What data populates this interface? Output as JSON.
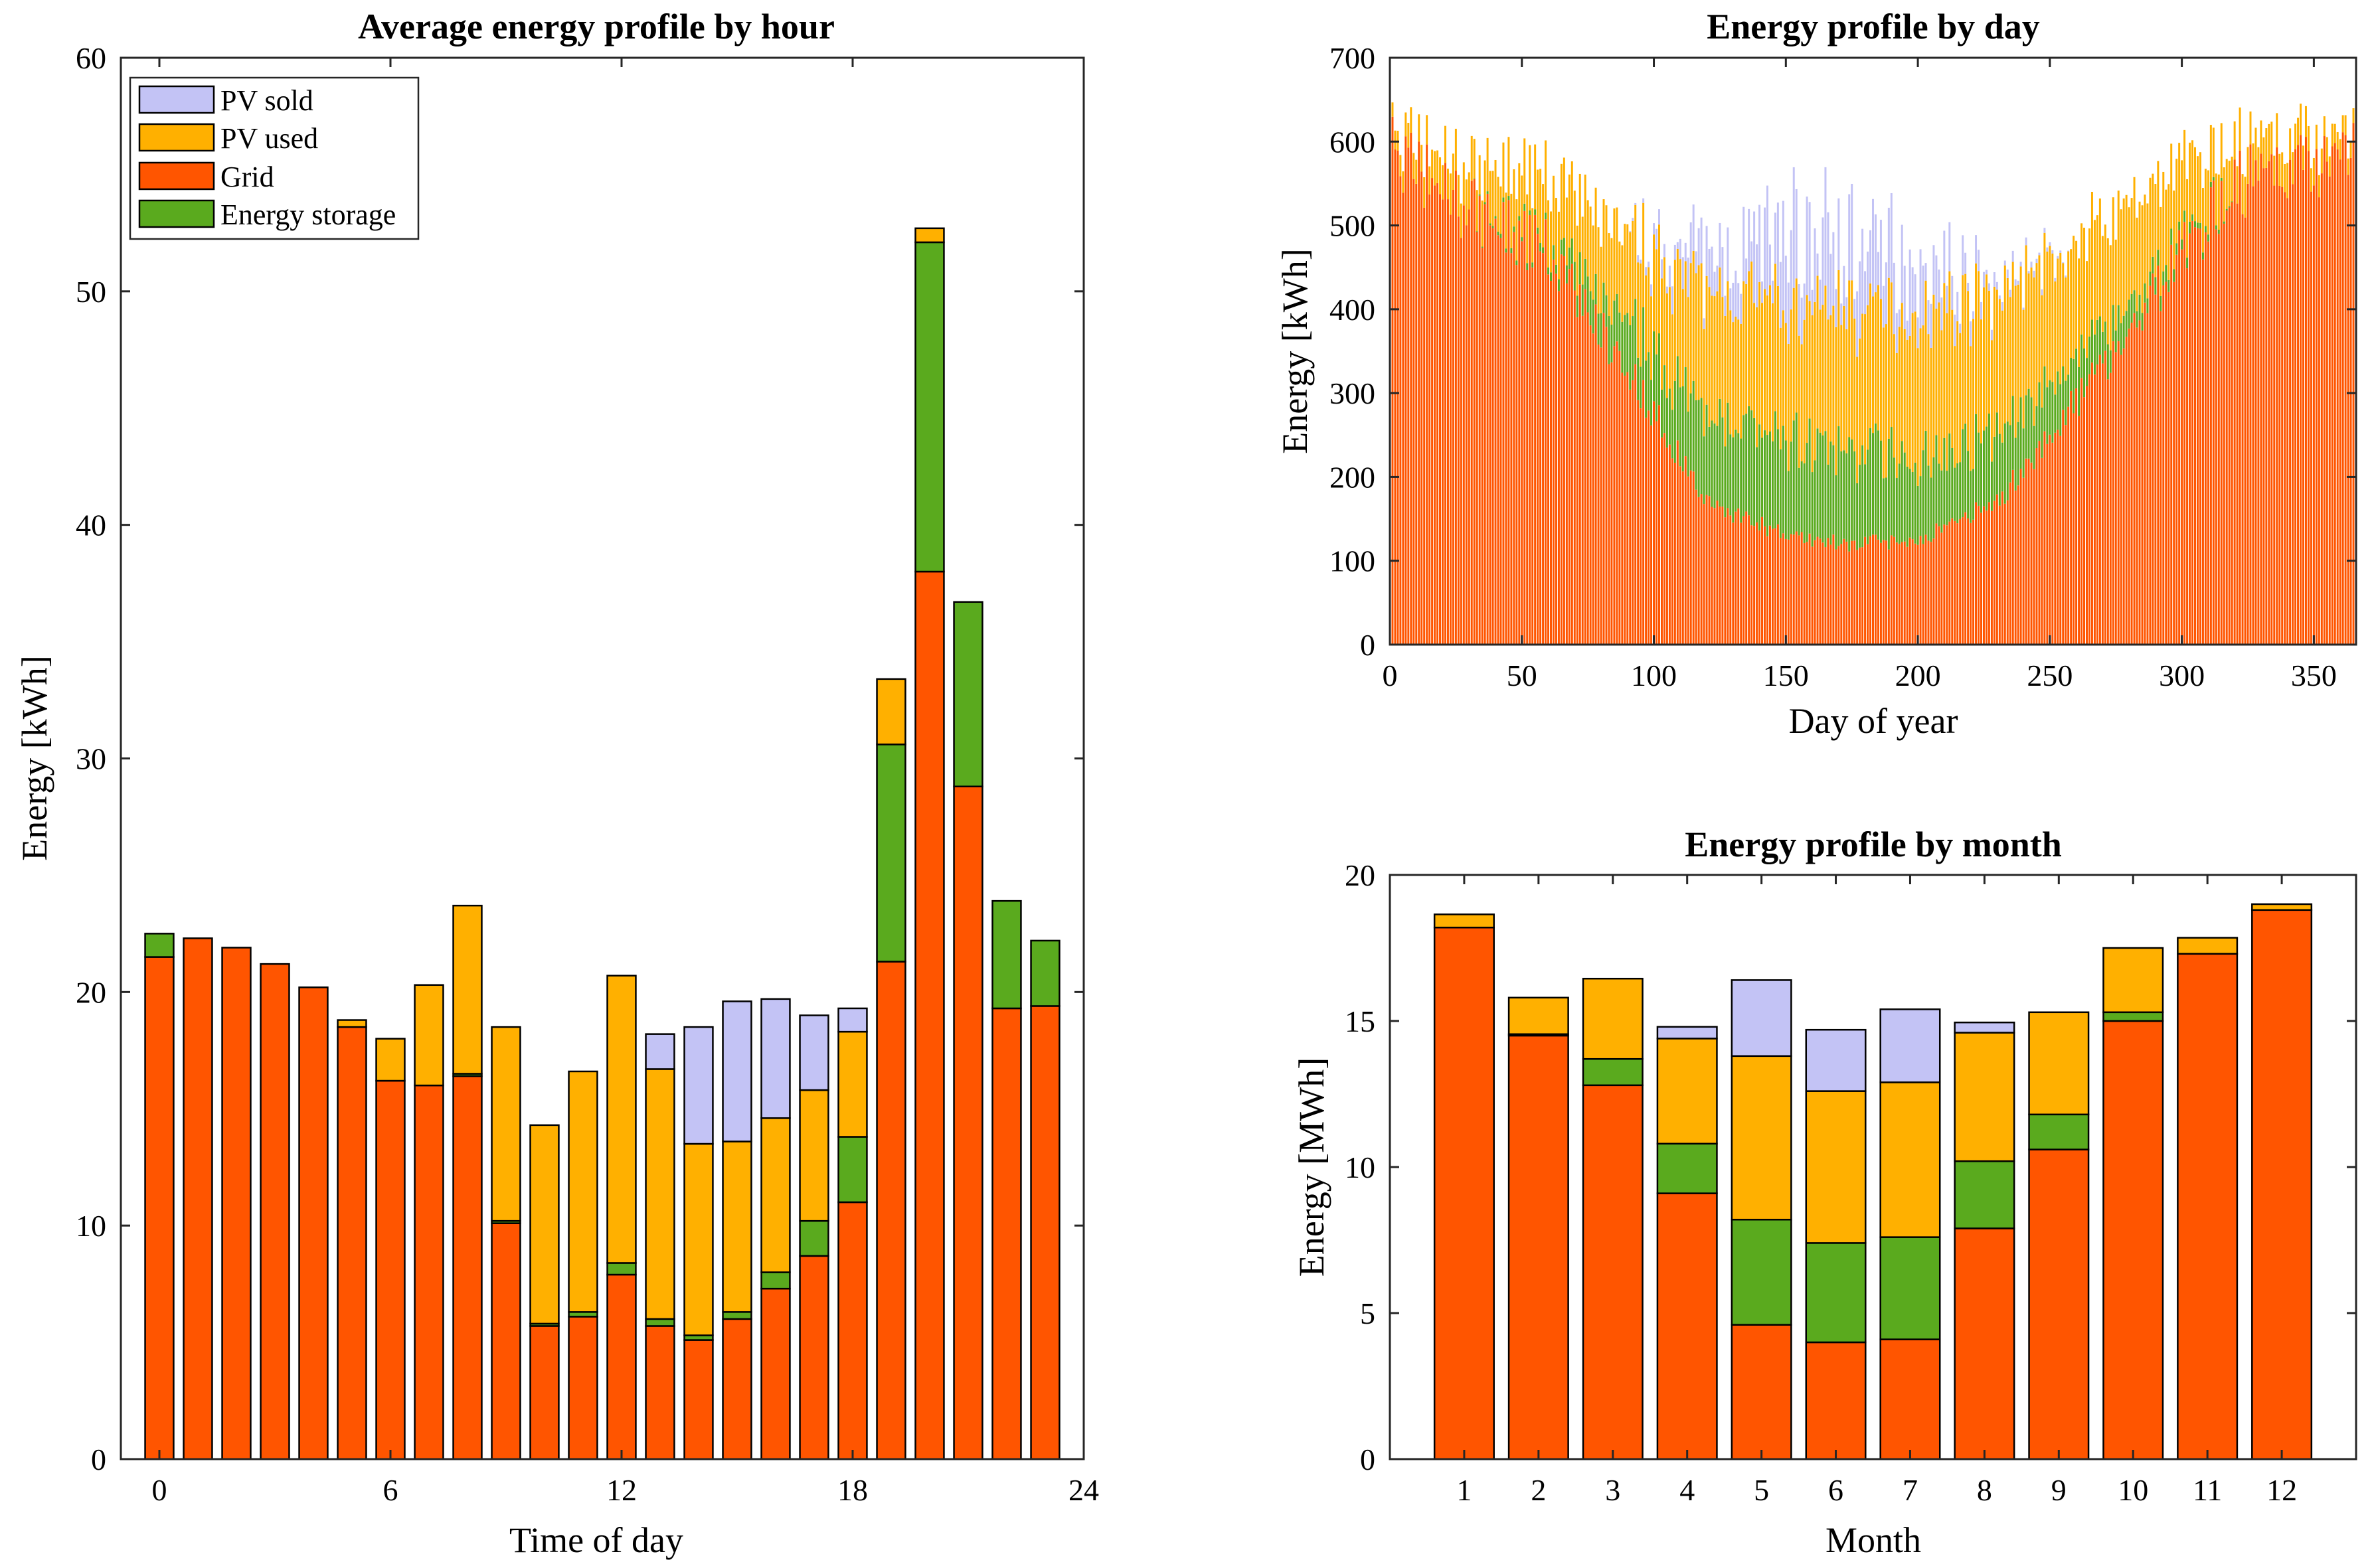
{
  "colors": {
    "pv_sold": "#C3C3F5",
    "pv_used": "#FFB000",
    "grid": "#FF5500",
    "storage": "#5AAA1E"
  },
  "legend": {
    "pv_sold": "PV sold",
    "pv_used": "PV used",
    "grid": "Grid",
    "storage": "Energy storage"
  },
  "chart_data": [
    {
      "id": "hourly",
      "type": "bar",
      "stacked": true,
      "title": "Average energy profile by hour",
      "xlabel": "Time of day",
      "ylabel": "Energy [kWh]",
      "xlim": [
        -1,
        24
      ],
      "ylim": [
        0,
        60
      ],
      "xticks": [
        0,
        6,
        12,
        18,
        24
      ],
      "yticks": [
        0,
        10,
        20,
        30,
        40,
        50,
        60
      ],
      "legend_position": "top-left",
      "x": [
        0,
        1,
        2,
        3,
        4,
        5,
        6,
        7,
        8,
        9,
        10,
        11,
        12,
        13,
        14,
        15,
        16,
        17,
        18,
        19,
        20,
        21,
        22,
        23
      ],
      "series": [
        {
          "name": "Grid",
          "key": "grid",
          "values": [
            21.5,
            22.3,
            21.9,
            21.2,
            20.2,
            18.5,
            16.2,
            16.0,
            16.4,
            10.1,
            5.7,
            6.1,
            7.9,
            5.7,
            5.1,
            6.0,
            7.3,
            8.7,
            11.0,
            21.3,
            38.0,
            28.8,
            19.3,
            19.4
          ]
        },
        {
          "name": "Energy storage",
          "key": "storage",
          "values": [
            1.0,
            0.0,
            0.0,
            0.0,
            0.0,
            0.0,
            0.0,
            0.0,
            0.1,
            0.1,
            0.1,
            0.2,
            0.5,
            0.3,
            0.2,
            0.3,
            0.7,
            1.5,
            2.8,
            9.3,
            14.1,
            7.9,
            4.6,
            2.8
          ]
        },
        {
          "name": "PV used",
          "key": "pv_used",
          "values": [
            0.0,
            0.0,
            0.0,
            0.0,
            0.0,
            0.3,
            1.8,
            4.3,
            7.2,
            8.3,
            8.5,
            10.3,
            12.3,
            10.7,
            8.2,
            7.3,
            6.6,
            5.6,
            4.5,
            2.8,
            0.6,
            0.0,
            0.0,
            0.0
          ]
        },
        {
          "name": "PV sold",
          "key": "pv_sold",
          "values": [
            0.0,
            0.0,
            0.0,
            0.0,
            0.0,
            0.0,
            0.0,
            0.0,
            0.0,
            0.0,
            0.0,
            0.0,
            0.0,
            1.5,
            5.0,
            6.0,
            5.1,
            3.2,
            1.0,
            0.0,
            0.0,
            0.0,
            0.0,
            0.0
          ]
        }
      ]
    },
    {
      "id": "daily",
      "type": "bar",
      "stacked": true,
      "title": "Energy profile by day",
      "xlabel": "Day of year",
      "ylabel": "Energy [kWh]",
      "xlim": [
        0,
        366
      ],
      "ylim": [
        0,
        700
      ],
      "xticks": [
        0,
        50,
        100,
        150,
        200,
        250,
        300,
        350
      ],
      "yticks": [
        0,
        100,
        200,
        300,
        400,
        500,
        600,
        700
      ],
      "days": 365,
      "profile_note": "smooth seasonal profile: ~600 kWh in winter, ~450 kWh in summer",
      "keypoints": {
        "day": [
          1,
          30,
          60,
          90,
          120,
          150,
          172,
          200,
          230,
          260,
          290,
          320,
          365
        ],
        "grid": [
          590,
          520,
          470,
          330,
          170,
          130,
          120,
          125,
          170,
          290,
          420,
          550,
          590
        ],
        "storage": [
          0,
          0,
          10,
          60,
          100,
          110,
          110,
          100,
          80,
          50,
          20,
          0,
          0
        ],
        "pv_used": [
          20,
          50,
          80,
          100,
          150,
          160,
          170,
          170,
          170,
          140,
          110,
          50,
          20
        ],
        "pv_sold": [
          0,
          0,
          0,
          0,
          40,
          90,
          80,
          60,
          10,
          0,
          0,
          0,
          0
        ]
      }
    },
    {
      "id": "monthly",
      "type": "bar",
      "stacked": true,
      "title": "Energy profile by month",
      "xlabel": "Month",
      "ylabel": "Energy [MWh]",
      "xlim": [
        0,
        13
      ],
      "ylim": [
        0,
        20
      ],
      "xticks": [
        1,
        2,
        3,
        4,
        5,
        6,
        7,
        8,
        9,
        10,
        11,
        12
      ],
      "yticks": [
        0,
        5,
        10,
        15,
        20
      ],
      "x": [
        1,
        2,
        3,
        4,
        5,
        6,
        7,
        8,
        9,
        10,
        11,
        12
      ],
      "series": [
        {
          "name": "Grid",
          "key": "grid",
          "values": [
            18.2,
            14.5,
            12.8,
            9.1,
            4.6,
            4.0,
            4.1,
            7.9,
            10.6,
            15.0,
            17.3,
            18.8
          ]
        },
        {
          "name": "Energy storage",
          "key": "storage",
          "values": [
            0.0,
            0.05,
            0.9,
            1.7,
            3.6,
            3.4,
            3.5,
            2.3,
            1.2,
            0.3,
            0.0,
            0.0
          ]
        },
        {
          "name": "PV used",
          "key": "pv_used",
          "values": [
            0.45,
            1.25,
            2.75,
            3.6,
            5.6,
            5.2,
            5.3,
            4.4,
            3.5,
            2.2,
            0.55,
            0.2
          ]
        },
        {
          "name": "PV sold",
          "key": "pv_sold",
          "values": [
            0.0,
            0.0,
            0.0,
            0.4,
            2.6,
            2.1,
            2.5,
            0.35,
            0.0,
            0.0,
            0.0,
            0.0
          ]
        }
      ]
    }
  ]
}
